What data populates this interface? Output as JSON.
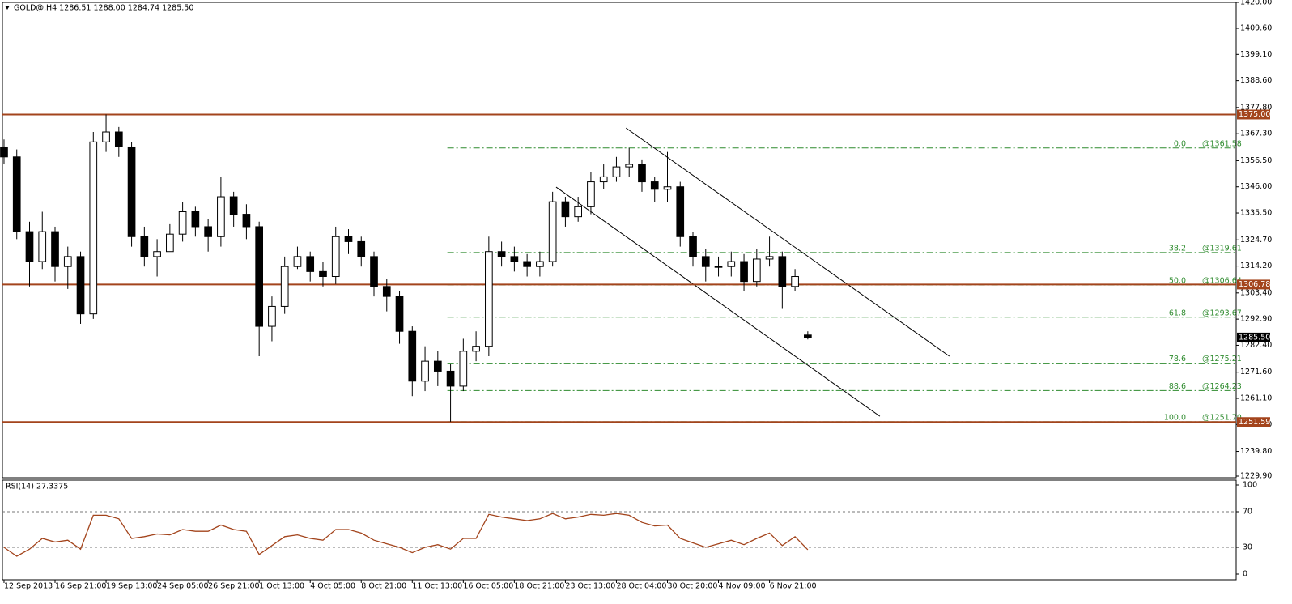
{
  "chart_data": {
    "type": "candlestick",
    "title": "GOLD@,H4  1286.51 1288.00 1284.74 1285.50",
    "x": [
      0,
      4,
      8,
      12,
      16,
      20,
      24,
      28,
      32,
      36,
      40,
      44,
      48,
      52,
      56,
      60,
      64,
      68,
      72,
      76,
      80,
      84,
      88,
      92,
      96,
      100,
      104,
      108,
      112,
      116,
      120,
      124,
      128,
      132,
      136,
      140,
      144,
      148,
      152,
      156,
      160,
      164,
      168,
      172,
      176,
      180,
      184,
      188,
      192,
      196,
      200,
      204,
      208,
      212,
      216,
      220,
      224,
      228,
      232,
      236,
      240,
      244,
      248,
      252
    ],
    "xlim": [
      -0.5,
      386.3
    ],
    "xticks": [
      {
        "value": 0,
        "label": "12 Sep 2013"
      },
      {
        "value": 16,
        "label": "16 Sep 21:00"
      },
      {
        "value": 32,
        "label": "19 Sep 13:00"
      },
      {
        "value": 48,
        "label": "24 Sep 05:00"
      },
      {
        "value": 64,
        "label": "26 Sep 21:00"
      },
      {
        "value": 80,
        "label": "1 Oct 13:00"
      },
      {
        "value": 96,
        "label": "4 Oct 05:00"
      },
      {
        "value": 112,
        "label": "8 Oct 21:00"
      },
      {
        "value": 128,
        "label": "11 Oct 13:00"
      },
      {
        "value": 144,
        "label": "16 Oct 05:00"
      },
      {
        "value": 160,
        "label": "18 Oct 21:00"
      },
      {
        "value": 176,
        "label": "23 Oct 13:00"
      },
      {
        "value": 192,
        "label": "28 Oct 04:00"
      },
      {
        "value": 208,
        "label": "30 Oct 20:00"
      },
      {
        "value": 224,
        "label": "4 Nov 09:00"
      },
      {
        "value": 240,
        "label": "6 Nov 21:00"
      }
    ],
    "open": [
      1362,
      1358,
      1328,
      1316,
      1328,
      1314,
      1318,
      1295,
      1364,
      1368,
      1362,
      1326,
      1318,
      1320,
      1327,
      1336,
      1330,
      1326,
      1342,
      1335,
      1330,
      1290,
      1298,
      1314,
      1318,
      1312,
      1310,
      1326,
      1324,
      1318,
      1306,
      1302,
      1288,
      1268,
      1276,
      1272,
      1266,
      1280,
      1282,
      1320,
      1318,
      1316,
      1314,
      1316,
      1340,
      1334,
      1338,
      1348,
      1350,
      1354,
      1355,
      1348,
      1345,
      1346,
      1326,
      1318,
      1314,
      1314,
      1316,
      1308,
      1317,
      1318,
      1306,
      1286.51
    ],
    "high": [
      1365,
      1361,
      1332,
      1336,
      1330,
      1322,
      1320,
      1368,
      1375,
      1370,
      1364,
      1330,
      1325,
      1331,
      1340,
      1338,
      1333,
      1350,
      1344,
      1339,
      1332,
      1302,
      1318,
      1322,
      1320,
      1316,
      1330,
      1329,
      1326,
      1320,
      1309,
      1304,
      1290,
      1282,
      1280,
      1275,
      1285,
      1288,
      1326,
      1324,
      1322,
      1319,
      1320,
      1344,
      1342,
      1342,
      1352,
      1355,
      1358,
      1361.58,
      1357,
      1350,
      1360,
      1348,
      1328,
      1321,
      1318,
      1320,
      1319,
      1321,
      1326,
      1320,
      1313,
      1288
    ],
    "low": [
      1355,
      1325,
      1306,
      1313,
      1308,
      1305,
      1291,
      1293,
      1360,
      1358,
      1322,
      1314,
      1310,
      1320,
      1324,
      1326,
      1320,
      1322,
      1330,
      1325,
      1278,
      1284,
      1295,
      1313,
      1308,
      1306,
      1307,
      1319,
      1314,
      1302,
      1296,
      1283,
      1262,
      1264,
      1266,
      1251.7,
      1264,
      1276,
      1278,
      1314,
      1312,
      1310,
      1310,
      1314,
      1330,
      1332,
      1335,
      1345,
      1348,
      1350,
      1344,
      1340,
      1340,
      1322,
      1314,
      1308,
      1310,
      1310,
      1304,
      1306,
      1314,
      1297,
      1304,
      1284.74
    ],
    "close": [
      1358,
      1328,
      1316,
      1328,
      1314,
      1318,
      1295,
      1364,
      1368,
      1362,
      1326,
      1318,
      1320,
      1327,
      1336,
      1330,
      1326,
      1342,
      1335,
      1330,
      1290,
      1298,
      1314,
      1318,
      1312,
      1310,
      1326,
      1324,
      1318,
      1306,
      1302,
      1288,
      1268,
      1276,
      1272,
      1266,
      1280,
      1282,
      1320,
      1318,
      1316,
      1314,
      1316,
      1340,
      1334,
      1338,
      1348,
      1350,
      1354,
      1355,
      1348,
      1345,
      1346,
      1326,
      1318,
      1314,
      1314,
      1316,
      1308,
      1317,
      1318,
      1306,
      1310,
      1285.5
    ],
    "up_color": "#ffffff",
    "down_color": "#000000",
    "ylim": [
      1229.9,
      1420
    ],
    "yticks": [
      {
        "value": 1420,
        "label": "1420.00"
      },
      {
        "value": 1409.6,
        "label": "1409.60"
      },
      {
        "value": 1399.1,
        "label": "1399.10"
      },
      {
        "value": 1388.6,
        "label": "1388.60"
      },
      {
        "value": 1377.8,
        "label": "1377.80"
      },
      {
        "value": 1367.3,
        "label": "1367.30"
      },
      {
        "value": 1356.5,
        "label": "1356.50"
      },
      {
        "value": 1346,
        "label": "1346.00"
      },
      {
        "value": 1335.5,
        "label": "1335.50"
      },
      {
        "value": 1324.7,
        "label": "1324.70"
      },
      {
        "value": 1314.2,
        "label": "1314.20"
      },
      {
        "value": 1303.4,
        "label": "1303.40"
      },
      {
        "value": 1292.9,
        "label": "1292.90"
      },
      {
        "value": 1282.4,
        "label": "1282.40"
      },
      {
        "value": 1271.6,
        "label": "1271.60"
      },
      {
        "value": 1261.1,
        "label": "1261.10"
      },
      {
        "value": 1250.6,
        "label": "1250.60"
      },
      {
        "value": 1239.8,
        "label": "1239.80"
      },
      {
        "value": 1229.9,
        "label": "1229.90"
      }
    ],
    "hlines": [
      {
        "value": 1375,
        "label": "1375.00"
      },
      {
        "value": 1306.78,
        "label": "1306.78"
      },
      {
        "value": 1251.59,
        "label": "1251.59"
      }
    ],
    "hline_color": "#a3441c",
    "price_label": {
      "value": 1285.5,
      "label": "1285.50"
    },
    "fib": {
      "x_start": 139,
      "color": "#2e8b2e",
      "levels": [
        {
          "ratio": "0.0",
          "label": "@1361.58",
          "value": 1361.58
        },
        {
          "ratio": "38.2",
          "label": "@1319.61",
          "value": 1319.61
        },
        {
          "ratio": "50.0",
          "label": "@1306.64",
          "value": 1306.64
        },
        {
          "ratio": "61.8",
          "label": "@1293.67",
          "value": 1293.67
        },
        {
          "ratio": "78.6",
          "label": "@1275.21",
          "value": 1275.21
        },
        {
          "ratio": "88.6",
          "label": "@1264.23",
          "value": 1264.23
        },
        {
          "ratio": "100.0",
          "label": "@1251.70",
          "value": 1251.7
        }
      ]
    },
    "trendlines": [
      {
        "x": [
          195,
          296.4
        ],
        "y": [
          1369.6,
          1278
        ]
      },
      {
        "x": [
          173.1,
          274.6
        ],
        "y": [
          1345.9,
          1253.9
        ]
      }
    ],
    "rsi": {
      "title": "RSI(14) 27.3375",
      "color": "#a3441c",
      "values": [
        30,
        20,
        28,
        40,
        36,
        38,
        28,
        66,
        66,
        62,
        40,
        42,
        45,
        44,
        50,
        48,
        48,
        55,
        50,
        48,
        22,
        32,
        42,
        44,
        40,
        38,
        50,
        50,
        46,
        38,
        34,
        30,
        24,
        30,
        33,
        28,
        40,
        40,
        67,
        64,
        62,
        60,
        62,
        68,
        62,
        64,
        67,
        66,
        68,
        66,
        58,
        54,
        55,
        40,
        35,
        30,
        34,
        38,
        33,
        40,
        46,
        32,
        42,
        27.3375
      ],
      "ylim": [
        0,
        100
      ],
      "yticks": [
        0,
        30,
        70,
        100
      ],
      "levels": [
        30,
        70
      ]
    }
  }
}
